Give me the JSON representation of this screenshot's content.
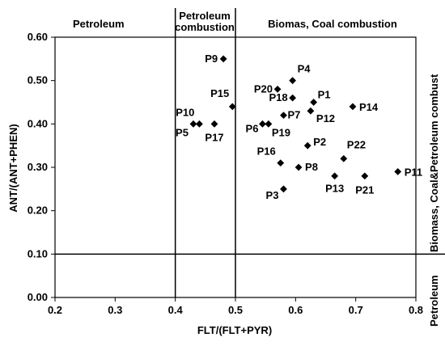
{
  "chart_data": {
    "type": "scatter",
    "xlabel": "FLT/(FLT+PYR)",
    "ylabel": "ANT/(ANT+PHEN)",
    "xlim": [
      0.2,
      0.8
    ],
    "ylim": [
      0.0,
      0.6
    ],
    "x_ticks": [
      "0.2",
      "0.3",
      "0.4",
      "0.5",
      "0.6",
      "0.7",
      "0.8"
    ],
    "y_ticks": [
      "0.00",
      "0.10",
      "0.20",
      "0.30",
      "0.40",
      "0.50",
      "0.60"
    ],
    "grid": false,
    "legend": "none",
    "marker": "diamond",
    "marker_color": "#000000",
    "vertical_lines_x": [
      0.4,
      0.5
    ],
    "horizontal_line_y": 0.1,
    "top_region_labels": {
      "left": "Petroleum",
      "middle_line1": "Petroleum",
      "middle_line2": "combustion",
      "right": "Biomas, Coal combustion"
    },
    "right_region_labels": {
      "upper": "Biomass, Coal&Petroleum combust",
      "lower": "Petroleum"
    },
    "points": [
      {
        "label": "P1",
        "x": 0.63,
        "y": 0.45
      },
      {
        "label": "P2",
        "x": 0.62,
        "y": 0.35
      },
      {
        "label": "P3",
        "x": 0.58,
        "y": 0.25
      },
      {
        "label": "P4",
        "x": 0.595,
        "y": 0.5
      },
      {
        "label": "P5",
        "x": 0.43,
        "y": 0.4
      },
      {
        "label": "P6",
        "x": 0.545,
        "y": 0.4
      },
      {
        "label": "P7",
        "x": 0.58,
        "y": 0.42
      },
      {
        "label": "P8",
        "x": 0.605,
        "y": 0.3
      },
      {
        "label": "P9",
        "x": 0.48,
        "y": 0.55
      },
      {
        "label": "P10",
        "x": 0.44,
        "y": 0.4
      },
      {
        "label": "P11",
        "x": 0.77,
        "y": 0.29
      },
      {
        "label": "P12",
        "x": 0.625,
        "y": 0.43
      },
      {
        "label": "P13",
        "x": 0.665,
        "y": 0.28
      },
      {
        "label": "P14",
        "x": 0.695,
        "y": 0.44
      },
      {
        "label": "P15",
        "x": 0.495,
        "y": 0.44
      },
      {
        "label": "P16",
        "x": 0.575,
        "y": 0.31
      },
      {
        "label": "P17",
        "x": 0.465,
        "y": 0.4
      },
      {
        "label": "P18",
        "x": 0.595,
        "y": 0.46
      },
      {
        "label": "P19",
        "x": 0.555,
        "y": 0.4
      },
      {
        "label": "P20",
        "x": 0.57,
        "y": 0.48
      },
      {
        "label": "P21",
        "x": 0.715,
        "y": 0.28
      },
      {
        "label": "P22",
        "x": 0.68,
        "y": 0.32
      }
    ]
  }
}
